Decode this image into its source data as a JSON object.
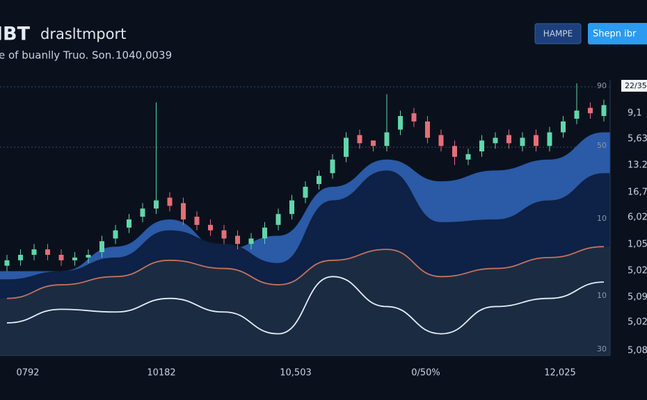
{
  "header": {
    "title_code": "IBT",
    "title": "drasltmport",
    "subtitle": "e of buanlly Truo. Son.",
    "subtitle_value": "1040,0039",
    "buttons": [
      "HAMPE",
      "Shepn ibr"
    ]
  },
  "chart": {
    "type": "candlestick",
    "ylim": [
      0,
      100
    ],
    "up_color": "#62d6ab",
    "down_color": "#e2707a",
    "open": [
      33,
      35,
      37,
      39,
      37,
      35,
      36,
      38,
      43,
      47,
      51,
      54,
      58,
      56,
      51,
      48,
      46,
      44,
      41,
      43,
      48,
      52,
      58,
      63,
      67,
      73,
      81,
      79,
      77,
      83,
      89,
      86,
      81,
      77,
      72,
      75,
      78,
      81,
      77,
      81,
      77,
      82,
      87,
      91,
      88
    ],
    "high": [
      37,
      39,
      41,
      41,
      39,
      38,
      39,
      44,
      48,
      52,
      56,
      93,
      60,
      58,
      53,
      50,
      48,
      46,
      45,
      49,
      54,
      59,
      64,
      68,
      74,
      82,
      83,
      79,
      96,
      90,
      91,
      88,
      83,
      79,
      76,
      81,
      82,
      83,
      82,
      83,
      84,
      88,
      100,
      93,
      94
    ],
    "low": [
      31,
      33,
      35,
      35,
      33,
      33,
      34,
      36,
      41,
      45,
      49,
      52,
      53,
      48,
      46,
      44,
      41,
      39,
      39,
      41,
      46,
      50,
      56,
      61,
      65,
      71,
      76,
      75,
      75,
      81,
      84,
      78,
      75,
      70,
      70,
      73,
      76,
      76,
      75,
      75,
      75,
      80,
      85,
      87,
      86
    ],
    "close": [
      35,
      37,
      39,
      37,
      35,
      36,
      37,
      42,
      46,
      50,
      54,
      57,
      55,
      50,
      48,
      46,
      43,
      41,
      43,
      47,
      52,
      57,
      62,
      66,
      72,
      80,
      78,
      77,
      82,
      88,
      86,
      80,
      77,
      73,
      74,
      79,
      80,
      78,
      80,
      77,
      82,
      86,
      90,
      89,
      92
    ],
    "area_x": [
      0,
      4,
      8,
      12,
      16,
      20,
      24,
      28,
      32,
      36,
      40,
      44
    ],
    "areas": [
      {
        "color": "#2b5aa6",
        "values": [
          31,
          31,
          40,
          50,
          39,
          44,
          62,
          72,
          64,
          68,
          72,
          82
        ]
      },
      {
        "color": "#0e2146",
        "values": [
          28,
          31,
          36,
          46,
          41,
          34,
          57,
          68,
          49,
          50,
          57,
          67
        ]
      },
      {
        "color": "#1b2c42",
        "line_color": "#c4735e",
        "values": [
          21,
          26,
          29,
          35,
          32,
          26,
          35,
          39,
          29,
          32,
          36,
          40
        ]
      },
      {
        "line_color": "#e8eef6",
        "values": [
          12,
          17,
          16,
          21,
          16,
          8,
          29,
          18,
          8,
          18,
          21,
          27
        ]
      }
    ],
    "box_label": "22/35",
    "inner_labels": [
      "90",
      "50",
      "10",
      "10",
      "30"
    ],
    "outer_labels": [
      "9,1",
      "5,63",
      "13.2",
      "16,7",
      "6,02",
      "1,05",
      "5,02",
      "5,09",
      "5,02",
      "5,08"
    ],
    "x_labels": [
      "0792",
      "10182",
      "10,503",
      "0/50%",
      "12,025"
    ]
  }
}
